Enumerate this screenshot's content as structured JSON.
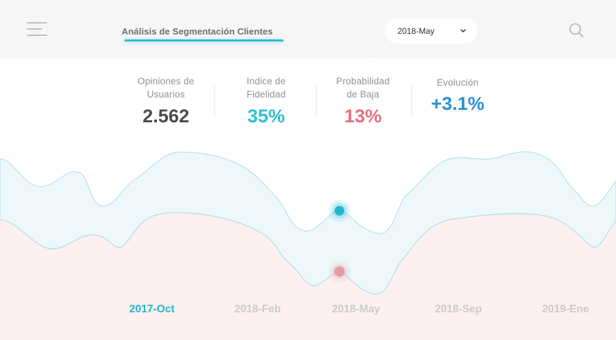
{
  "header": {
    "title": "Análisis de Segmentación Clientes",
    "date_select": {
      "selected": "2018-May",
      "chevron_icon": "chevron-down-icon"
    },
    "menu_icon": "hamburger-menu-icon",
    "search_icon": "search-icon"
  },
  "kpis": [
    {
      "label_line1": "Opiniones de",
      "label_line2": "Usuarios",
      "value": "2.562",
      "color": "#4a4c51"
    },
    {
      "label_line1": "Indice de",
      "label_line2": "Fidelidad",
      "value": "35%",
      "color": "#2bbfd4"
    },
    {
      "label_line1": "Probabilidad",
      "label_line2": "de Baja",
      "value": "13%",
      "color": "#ea6d7f"
    },
    {
      "label_line1": "Evolución",
      "label_line2": "",
      "value": "+3.1%",
      "color": "#2a8fd4"
    }
  ],
  "timeline": {
    "active_label": "2017-Oct",
    "labels": [
      "2017-Oct",
      "2018-Feb",
      "2018-May",
      "2018-Sep",
      "2019-Ene"
    ],
    "colors": {
      "upper_band": "#eef8fb",
      "lower_band": "#fdf0ef",
      "active_marker": "#1fb6d0",
      "secondary_marker": "#e39aa0"
    }
  }
}
